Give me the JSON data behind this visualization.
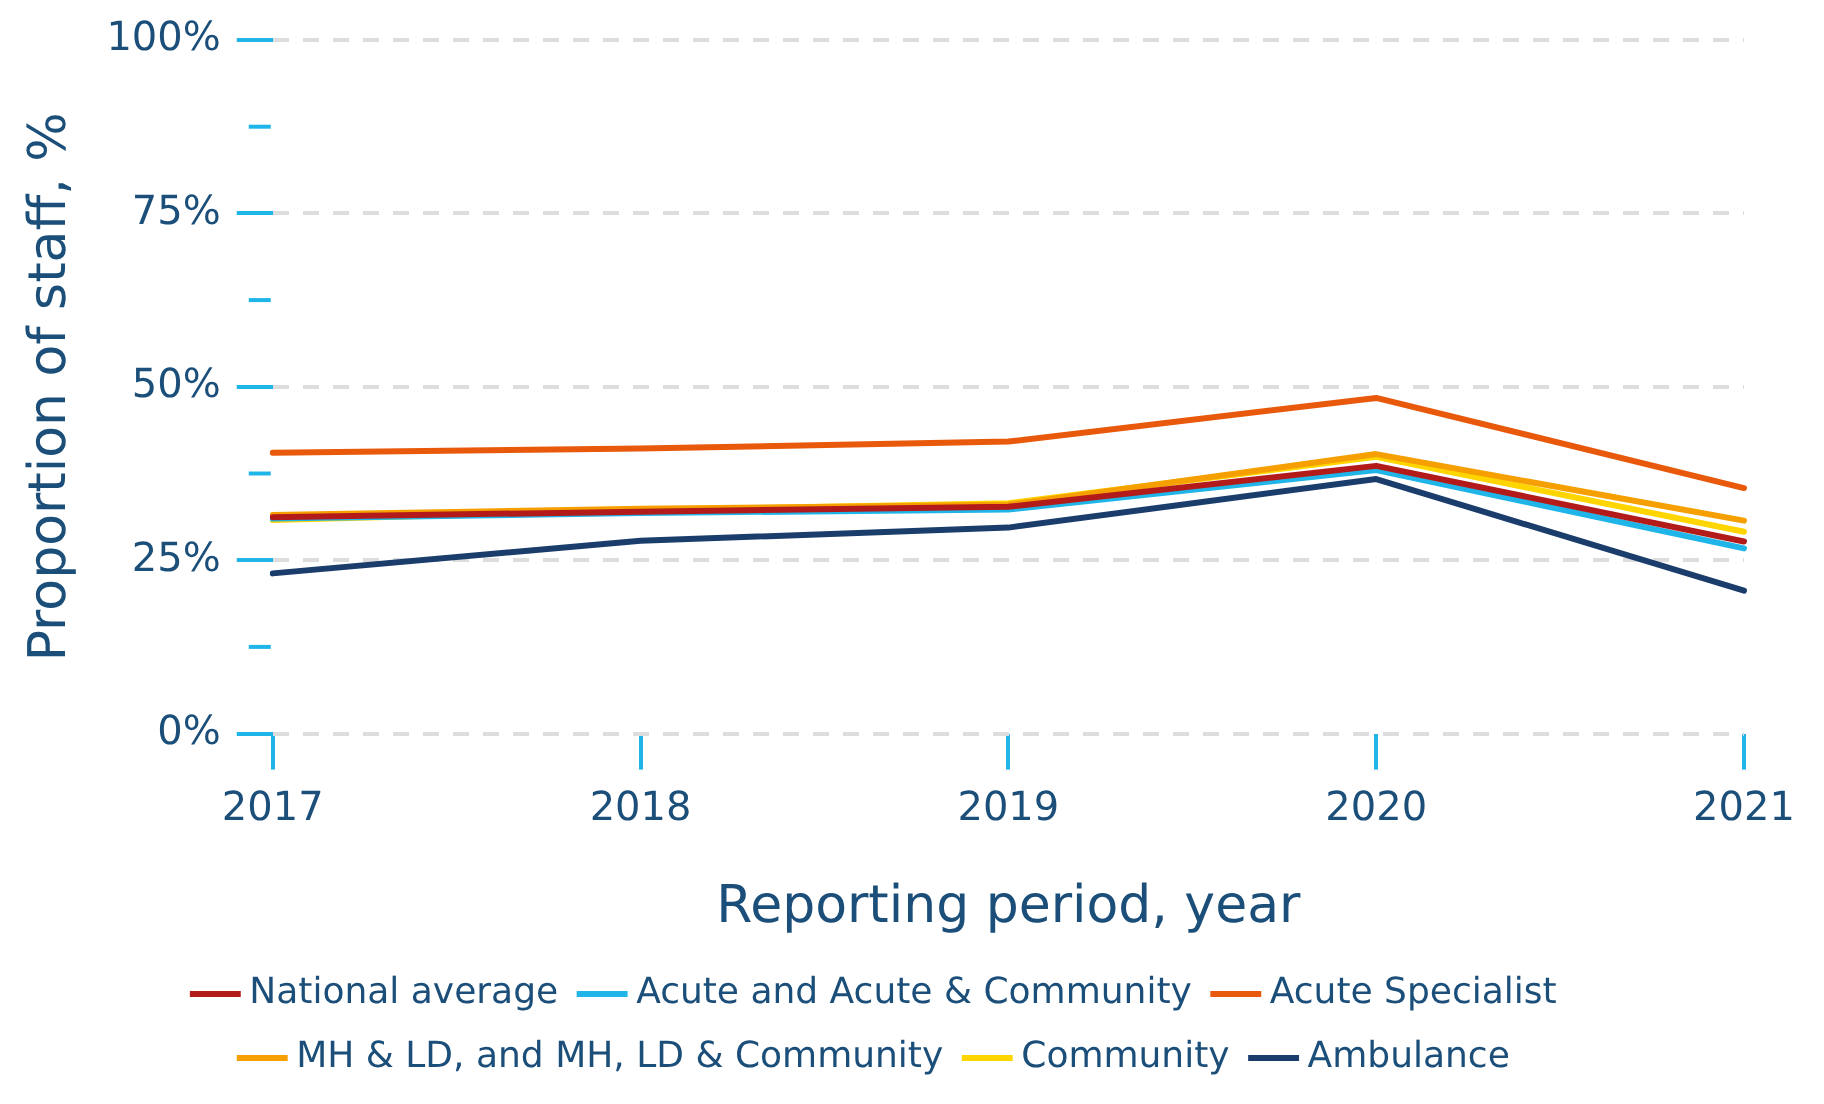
{
  "chart_data": {
    "type": "line",
    "xlabel": "Reporting period, year",
    "ylabel": "Proportion of staff, %",
    "categories": [
      "2017",
      "2018",
      "2019",
      "2020",
      "2021"
    ],
    "series": [
      {
        "name": "National average",
        "color": "#b31b1b",
        "values": [
          31.2,
          32,
          32.7,
          38.6,
          27.7
        ]
      },
      {
        "name": "Acute and Acute & Community",
        "color": "#1fb5e8",
        "values": [
          31,
          31.8,
          32.3,
          38,
          26.7
        ]
      },
      {
        "name": "Acute Specialist",
        "color": "#e8590c",
        "values": [
          40.5,
          41.1,
          42.1,
          48.4,
          35.4
        ]
      },
      {
        "name": "MH & LD, and MH, LD & Community",
        "color": "#f5a000",
        "values": [
          31.5,
          32.4,
          33,
          40.3,
          30.7
        ]
      },
      {
        "name": "Community",
        "color": "#ffd500",
        "values": [
          30.8,
          32.2,
          33.2,
          39.9,
          29.1
        ]
      },
      {
        "name": "Ambulance",
        "color": "#1b3d6b",
        "values": [
          23.1,
          27.8,
          29.7,
          36.7,
          20.6
        ]
      }
    ],
    "ylim": [
      0,
      100
    ],
    "yticks": [
      {
        "value": 0,
        "label": "0%"
      },
      {
        "value": 12.5,
        "label": null
      },
      {
        "value": 25,
        "label": "25%"
      },
      {
        "value": 37.5,
        "label": null
      },
      {
        "value": 50,
        "label": "50%"
      },
      {
        "value": 62.5,
        "label": null
      },
      {
        "value": 75,
        "label": "75%"
      },
      {
        "value": 87.5,
        "label": null
      },
      {
        "value": 100,
        "label": "100%"
      }
    ],
    "grid": "y",
    "legend": "bottom",
    "marker": "none",
    "line_style": "solid"
  }
}
